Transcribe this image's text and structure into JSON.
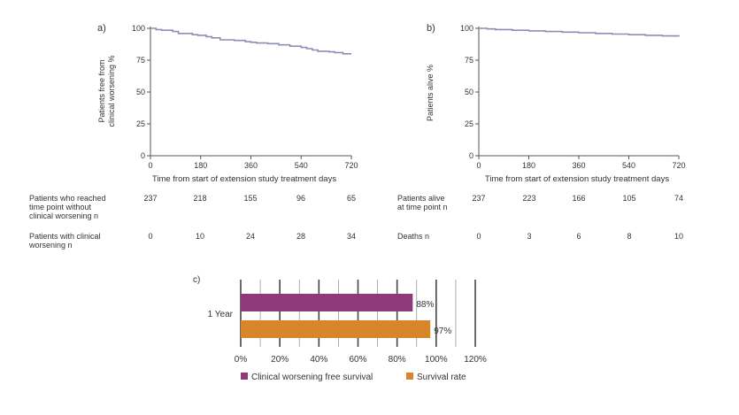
{
  "chart_data": [
    {
      "type": "line",
      "panel_label": "a)",
      "xlabel": "Time from start of extension study treatment days",
      "ylabel": [
        "Patients free from",
        "clinical worsening %"
      ],
      "xlim": [
        0,
        720
      ],
      "ylim": [
        0,
        100
      ],
      "x_ticks": [
        0,
        180,
        360,
        540,
        720
      ],
      "y_ticks": [
        0,
        25,
        50,
        75,
        100
      ],
      "series": [
        {
          "color": "#8a8fb8",
          "x": [
            0,
            20,
            40,
            80,
            100,
            150,
            170,
            200,
            220,
            250,
            300,
            340,
            360,
            380,
            420,
            460,
            500,
            540,
            560,
            580,
            600,
            640,
            660,
            690,
            720
          ],
          "y": [
            100,
            99,
            98.5,
            97.5,
            96,
            95,
            94.5,
            93.5,
            92.5,
            91,
            90.5,
            89.5,
            89,
            88.5,
            88,
            87,
            86,
            85,
            84,
            83,
            82,
            81.5,
            81,
            80,
            80
          ]
        }
      ],
      "table": [
        {
          "label": [
            "Patients who reached",
            "time point without",
            "clinical worsening n"
          ],
          "values": [
            "237",
            "218",
            "155",
            "96",
            "65"
          ]
        },
        {
          "label": [
            "Patients with clinical",
            "worsening n"
          ],
          "values": [
            "0",
            "10",
            "24",
            "28",
            "34"
          ]
        }
      ]
    },
    {
      "type": "line",
      "panel_label": "b)",
      "xlabel": "Time from start of extension study treatment days",
      "ylabel": [
        "Patients alive %"
      ],
      "xlim": [
        0,
        720
      ],
      "ylim": [
        0,
        100
      ],
      "x_ticks": [
        0,
        180,
        360,
        540,
        720
      ],
      "y_ticks": [
        0,
        25,
        50,
        75,
        100
      ],
      "series": [
        {
          "color": "#8a8fb8",
          "x": [
            0,
            30,
            60,
            120,
            180,
            240,
            300,
            360,
            420,
            480,
            540,
            600,
            660,
            720
          ],
          "y": [
            100,
            99.5,
            99,
            98.5,
            98,
            97.5,
            97,
            96.5,
            96,
            95.5,
            95,
            94.5,
            94,
            93.5
          ]
        }
      ],
      "table": [
        {
          "label": [
            "Patients alive",
            "at time point n"
          ],
          "values": [
            "237",
            "223",
            "166",
            "105",
            "74"
          ]
        },
        {
          "label": [
            "Deaths n"
          ],
          "values": [
            "0",
            "3",
            "6",
            "8",
            "10"
          ]
        }
      ]
    },
    {
      "type": "bar",
      "orientation": "horizontal",
      "panel_label": "c)",
      "categories": [
        "1 Year"
      ],
      "series": [
        {
          "name": "Clinical worsening free survival",
          "values": [
            88
          ],
          "label": "88%",
          "color": "#8e3a7a"
        },
        {
          "name": "Survival rate",
          "values": [
            97
          ],
          "label": "97%",
          "color": "#d9862b"
        }
      ],
      "xlim": [
        0,
        120
      ],
      "x_ticks": [
        "0%",
        "20%",
        "40%",
        "60%",
        "80%",
        "100%",
        "120%"
      ],
      "legend": "bottom",
      "grid": true
    }
  ]
}
